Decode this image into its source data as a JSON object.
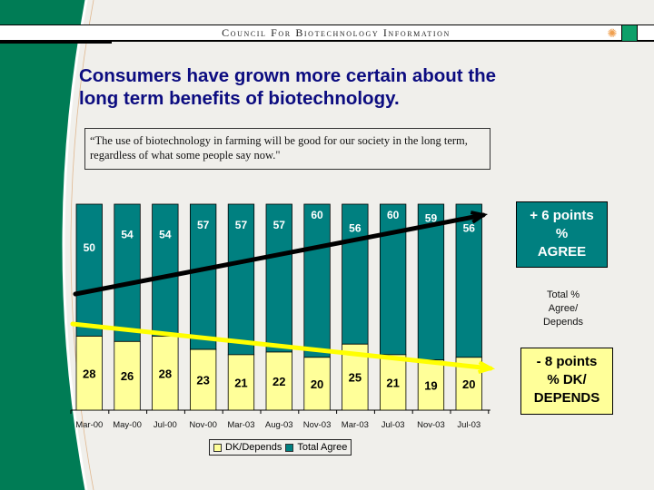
{
  "header": {
    "org_name": "Council For Biotechnology Information",
    "logo_icons": [
      "sun-icon",
      "green-square-icon"
    ]
  },
  "title_lines": [
    "Consumers have grown more certain about the",
    "long term benefits of biotechnology."
  ],
  "quote_lines": [
    "“The use of biotechnology in farming will be good for our society in the long term,",
    "regardless of what some people say  now.\""
  ],
  "colors": {
    "agree": "#008080",
    "dk": "#ffff99",
    "title": "#0c0c80",
    "brand_green": "#007c55",
    "agree_trend": "#000000",
    "dk_trend": "#ffff00"
  },
  "callouts": {
    "agree": [
      "+ 6 points",
      "%",
      "AGREE"
    ],
    "total_note": [
      "Total %",
      "Agree/",
      "Depends"
    ],
    "dk": [
      "- 8 points",
      "% DK/",
      "DEPENDS"
    ]
  },
  "chart_data": {
    "type": "bar",
    "stacked": true,
    "categories": [
      "Mar-00",
      "May-00",
      "Jul-00",
      "Nov-00",
      "Mar-03",
      "Aug-03",
      "Nov-03",
      "Mar-03",
      "Jul-03",
      "Nov-03",
      "Jul-03"
    ],
    "series": [
      {
        "name": "DK/Depends",
        "values": [
          28,
          26,
          28,
          23,
          21,
          22,
          20,
          25,
          21,
          19,
          20
        ]
      },
      {
        "name": "Total Agree",
        "values": [
          50,
          54,
          54,
          57,
          57,
          57,
          60,
          56,
          60,
          59,
          56
        ]
      }
    ],
    "ylim": [
      0,
      78
    ],
    "grid": false,
    "legend": {
      "position": "bottom",
      "entries": [
        "DK/Depends",
        "Total Agree"
      ]
    },
    "trend_lines": [
      {
        "name": "Total Agree trend",
        "from": 50,
        "to": 59,
        "arrow": true
      },
      {
        "name": "DK/Depends trend",
        "from": 33,
        "to": 16,
        "arrow": true
      }
    ],
    "annotations": [
      "+ 6 points % AGREE",
      "Total % Agree/ Depends",
      "- 8 points % DK/ DEPENDS"
    ]
  }
}
